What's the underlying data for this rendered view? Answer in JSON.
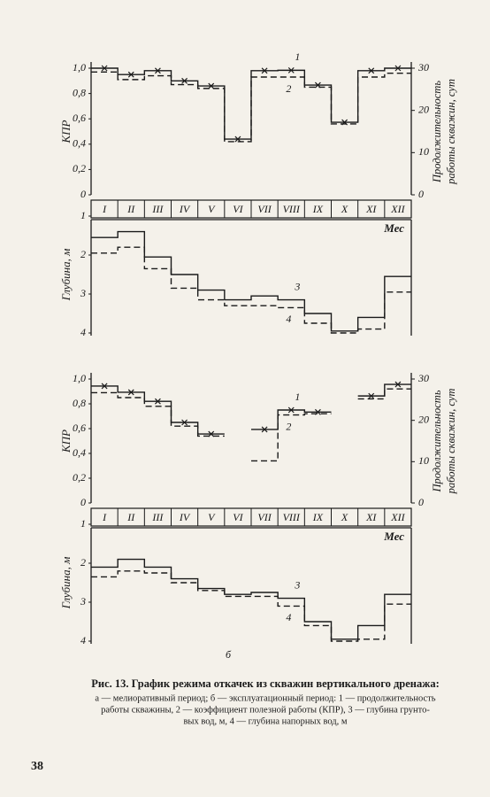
{
  "chart_data": [
    {
      "type": "step",
      "categories": [
        "I",
        "II",
        "III",
        "IV",
        "V",
        "VI",
        "VII",
        "VIII",
        "IX",
        "X",
        "XI",
        "XII"
      ],
      "ylabel": "КПР",
      "ylim": [
        0,
        1
      ],
      "yticks": [
        0,
        {
          "value": 0.2,
          "label": "0,2"
        },
        {
          "value": 0.4,
          "label": "0,4"
        },
        {
          "value": 0.6,
          "label": "0,6"
        },
        {
          "value": 0.8,
          "label": "0,8"
        },
        {
          "value": 1,
          "label": "1,0"
        }
      ],
      "y2label": [
        "Продолжительность",
        "работы скважин, сут"
      ],
      "y2lim": [
        0,
        30
      ],
      "y2ticks": [
        0,
        10,
        20,
        30
      ],
      "series": [
        {
          "name": "1",
          "color": "#1a1a1a",
          "style": "solid",
          "marker": "x",
          "axis": "y2",
          "values": [
            30,
            28.5,
            29.4,
            27,
            25.8,
            13.2,
            29.4,
            29.5,
            26,
            17.2,
            29.4,
            30
          ]
        },
        {
          "name": "2",
          "color": "#1a1a1a",
          "style": "dashed",
          "values": [
            0.97,
            0.91,
            0.94,
            0.87,
            0.84,
            0.42,
            0.93,
            0.93,
            0.85,
            0.56,
            0.93,
            0.96
          ]
        }
      ]
    },
    {
      "type": "step",
      "xlabel": "Мес",
      "ylabel": "Глубина, м",
      "ylim": [
        1,
        4
      ],
      "y_inverted": true,
      "yticks": [
        1,
        2,
        3,
        4
      ],
      "series": [
        {
          "name": "3",
          "color": "#1a1a1a",
          "style": "solid",
          "values": [
            1.55,
            1.4,
            2.05,
            2.5,
            2.9,
            3.15,
            3.05,
            3.15,
            3.5,
            3.95,
            3.6,
            2.55
          ]
        },
        {
          "name": "4",
          "color": "#1a1a1a",
          "style": "dashed",
          "values": [
            1.95,
            1.8,
            2.35,
            2.85,
            3.15,
            3.3,
            3.3,
            3.35,
            3.75,
            4,
            3.9,
            2.95
          ]
        }
      ]
    },
    {
      "type": "step",
      "categories": [
        "I",
        "II",
        "III",
        "IV",
        "V",
        "VI",
        "VII",
        "VIII",
        "IX",
        "X",
        "XI",
        "XII"
      ],
      "ylabel": "КПР",
      "ylim": [
        0,
        1
      ],
      "yticks": [
        0,
        {
          "value": 0.2,
          "label": "0,2"
        },
        {
          "value": 0.4,
          "label": "0,4"
        },
        {
          "value": 0.6,
          "label": "0,6"
        },
        {
          "value": 0.8,
          "label": "0,8"
        },
        {
          "value": 1,
          "label": "1,0"
        }
      ],
      "y2label": [
        "Продолжительность",
        "работы скважин, сут"
      ],
      "y2lim": [
        0,
        30
      ],
      "y2ticks": [
        0,
        10,
        20,
        30
      ],
      "series": [
        {
          "name": "1",
          "color": "#1a1a1a",
          "style": "solid",
          "marker": "x",
          "axis": "y2",
          "values": [
            28.3,
            26.8,
            24.6,
            19.5,
            16.7,
            null,
            17.8,
            22.5,
            22,
            null,
            25.9,
            28.7
          ]
        },
        {
          "name": "2",
          "color": "#1a1a1a",
          "style": "dashed",
          "values": [
            0.89,
            0.85,
            0.78,
            0.62,
            0.54,
            null,
            0.34,
            0.71,
            0.72,
            null,
            0.84,
            0.92
          ]
        }
      ]
    },
    {
      "type": "step",
      "xlabel": "Мес",
      "ylabel": "Глубина, м",
      "ylim": [
        1,
        4
      ],
      "y_inverted": true,
      "yticks": [
        1,
        2,
        3,
        4
      ],
      "figure_label": "б",
      "series": [
        {
          "name": "3",
          "color": "#1a1a1a",
          "style": "solid",
          "values": [
            2.1,
            1.9,
            2.1,
            2.4,
            2.65,
            2.8,
            2.75,
            2.9,
            3.5,
            3.95,
            3.6,
            2.8
          ]
        },
        {
          "name": "4",
          "color": "#1a1a1a",
          "style": "dashed",
          "values": [
            2.35,
            2.2,
            2.25,
            2.5,
            2.7,
            2.85,
            2.85,
            3.1,
            3.6,
            4,
            3.95,
            3.05
          ]
        }
      ]
    }
  ],
  "caption": [
    "Рис. 13. График режима откачек из скважин вертикального дренажа:",
    "а — мелиоративный период; б — эксплуатационный период: 1 — продолжительность",
    "работы скважины, 2 — коэффициент полезной работы (КПР), 3 — глубина грунто-",
    "вых вод, м, 4 — глубина напорных вод, м"
  ],
  "page_number": "38"
}
